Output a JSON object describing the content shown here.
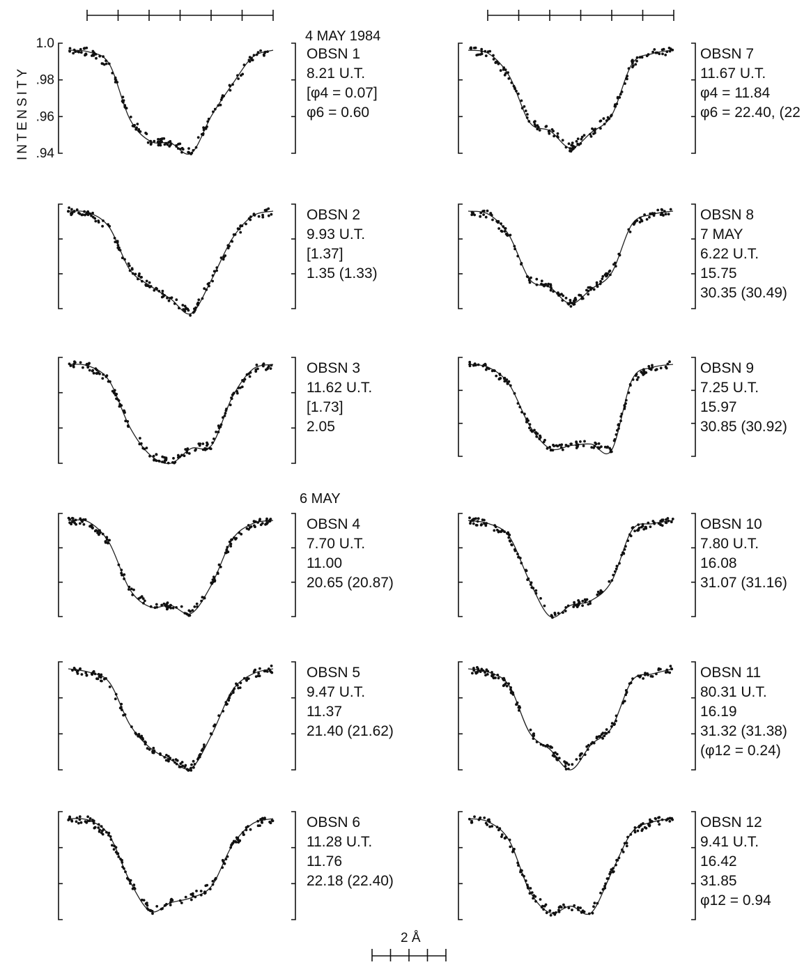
{
  "figure": {
    "ylabel": "INTENSITY",
    "scale_bar_label": "2 Å",
    "dates": [
      "4 MAY 1984",
      "6 MAY"
    ]
  },
  "chart_data": [
    {
      "type": "line",
      "obsn": "OBSN 1",
      "lines": [
        "OBSN 1",
        "8.21 U.T.",
        "[φ4 = 0.07]",
        "φ6 = 0.60"
      ],
      "ylim": [
        0.94,
        1.0
      ],
      "yticks": [
        ".94",
        ".96",
        ".98",
        "1.0"
      ],
      "x": [
        0,
        0.1,
        0.2,
        0.3,
        0.4,
        0.5,
        0.6,
        0.7,
        0.8,
        0.9,
        1.0
      ],
      "y": [
        1.0,
        0.999,
        0.992,
        0.96,
        0.947,
        0.946,
        0.94,
        0.962,
        0.98,
        0.996,
        1.0
      ]
    },
    {
      "type": "line",
      "obsn": "OBSN 2",
      "lines": [
        "OBSN 2",
        "9.93 U.T.",
        "[1.37]",
        "1.35 (1.33)"
      ],
      "ylim": [
        0.94,
        1.0
      ],
      "x": [
        0,
        0.1,
        0.2,
        0.3,
        0.4,
        0.5,
        0.6,
        0.7,
        0.8,
        0.9,
        1.0
      ],
      "y": [
        1.0,
        0.999,
        0.99,
        0.964,
        0.954,
        0.946,
        0.937,
        0.958,
        0.983,
        0.997,
        1.0
      ]
    },
    {
      "type": "line",
      "obsn": "OBSN 3",
      "lines": [
        "OBSN 3",
        "11.62 U.T.",
        "[1.73]",
        "2.05"
      ],
      "ylim": [
        0.94,
        1.0
      ],
      "x": [
        0,
        0.1,
        0.2,
        0.3,
        0.4,
        0.5,
        0.6,
        0.7,
        0.8,
        0.9,
        1.0
      ],
      "y": [
        1.0,
        0.999,
        0.99,
        0.962,
        0.945,
        0.94,
        0.949,
        0.951,
        0.98,
        0.997,
        1.0
      ]
    },
    {
      "type": "line",
      "obsn": "OBSN 4",
      "lines": [
        "OBSN 4",
        "7.70 U.T.",
        "11.00",
        "20.65 (20.87)"
      ],
      "ylim": [
        0.94,
        1.0
      ],
      "x": [
        0,
        0.1,
        0.2,
        0.3,
        0.4,
        0.5,
        0.6,
        0.7,
        0.8,
        0.9,
        1.0
      ],
      "y": [
        1.0,
        0.999,
        0.986,
        0.957,
        0.946,
        0.947,
        0.942,
        0.96,
        0.988,
        0.998,
        1.0
      ]
    },
    {
      "type": "line",
      "obsn": "OBSN 5",
      "lines": [
        "OBSN 5",
        "9.47 U.T.",
        "11.37",
        "21.40 (21.62)"
      ],
      "ylim": [
        0.94,
        1.0
      ],
      "x": [
        0,
        0.1,
        0.2,
        0.3,
        0.4,
        0.5,
        0.6,
        0.7,
        0.8,
        0.9,
        1.0
      ],
      "y": [
        1.0,
        0.998,
        0.992,
        0.967,
        0.953,
        0.946,
        0.941,
        0.961,
        0.987,
        0.997,
        1.0
      ]
    },
    {
      "type": "line",
      "obsn": "OBSN 6",
      "lines": [
        "OBSN 6",
        "11.28 U.T.",
        "11.76",
        "22.18 (22.40)"
      ],
      "ylim": [
        0.94,
        1.0
      ],
      "x": [
        0,
        0.1,
        0.2,
        0.3,
        0.4,
        0.5,
        0.6,
        0.7,
        0.8,
        0.9,
        1.0
      ],
      "y": [
        1.0,
        0.999,
        0.99,
        0.963,
        0.945,
        0.95,
        0.953,
        0.96,
        0.984,
        0.997,
        1.0
      ]
    },
    {
      "type": "line",
      "obsn": "OBSN 7",
      "lines": [
        "OBSN 7",
        "11.67 U.T.",
        "φ4 = 11.84",
        "φ6 = 22.40, (22"
      ],
      "ylim": [
        0.94,
        1.0
      ],
      "x": [
        0,
        0.1,
        0.2,
        0.3,
        0.4,
        0.5,
        0.6,
        0.7,
        0.8,
        0.9,
        1.0
      ],
      "y": [
        1.0,
        0.998,
        0.985,
        0.958,
        0.953,
        0.943,
        0.952,
        0.962,
        0.992,
        0.998,
        1.0
      ]
    },
    {
      "type": "line",
      "obsn": "OBSN 8",
      "lines": [
        "OBSN 8",
        "7 MAY",
        "6.22 U.T.",
        "15.75",
        "30.35 (30.49)"
      ],
      "ylim": [
        0.94,
        1.0
      ],
      "x": [
        0,
        0.1,
        0.2,
        0.3,
        0.4,
        0.5,
        0.6,
        0.7,
        0.8,
        0.9,
        1.0
      ],
      "y": [
        1.0,
        0.998,
        0.985,
        0.958,
        0.953,
        0.943,
        0.952,
        0.962,
        0.992,
        0.998,
        1.0
      ]
    },
    {
      "type": "line",
      "obsn": "OBSN 9",
      "lines": [
        "OBSN 9",
        "7.25 U.T.",
        "15.97",
        "30.85 (30.92)"
      ],
      "ylim": [
        0.94,
        1.0
      ],
      "x": [
        0,
        0.1,
        0.2,
        0.3,
        0.4,
        0.5,
        0.6,
        0.7,
        0.8,
        0.9,
        1.0
      ],
      "y": [
        1.0,
        0.998,
        0.987,
        0.96,
        0.945,
        0.947,
        0.948,
        0.944,
        0.99,
        0.998,
        1.0
      ]
    },
    {
      "type": "line",
      "obsn": "OBSN 10",
      "lines": [
        "OBSN 10",
        "7.80 U.T.",
        "16.08",
        "31.07 (31.16)"
      ],
      "ylim": [
        0.94,
        1.0
      ],
      "x": [
        0,
        0.1,
        0.2,
        0.3,
        0.4,
        0.5,
        0.6,
        0.7,
        0.8,
        0.9,
        1.0
      ],
      "y": [
        1.0,
        0.998,
        0.99,
        0.962,
        0.94,
        0.947,
        0.95,
        0.962,
        0.994,
        0.998,
        1.0
      ]
    },
    {
      "type": "line",
      "obsn": "OBSN 11",
      "lines": [
        "OBSN 11",
        "80.31 U.T.",
        "16.19",
        "31.32 (31.38)",
        "(φ12 = 0.24)"
      ],
      "ylim": [
        0.94,
        1.0
      ],
      "x": [
        0,
        0.1,
        0.2,
        0.3,
        0.4,
        0.5,
        0.6,
        0.7,
        0.8,
        0.9,
        1.0
      ],
      "y": [
        1.0,
        0.998,
        0.99,
        0.962,
        0.952,
        0.94,
        0.955,
        0.965,
        0.993,
        0.997,
        1.0
      ]
    },
    {
      "type": "line",
      "obsn": "OBSN 12",
      "lines": [
        "OBSN 12",
        "9.41 U.T.",
        "16.42",
        "31.85",
        "φ12 = 0.94"
      ],
      "ylim": [
        0.94,
        1.0
      ],
      "x": [
        0,
        0.1,
        0.2,
        0.3,
        0.4,
        0.5,
        0.6,
        0.7,
        0.8,
        0.9,
        1.0
      ],
      "y": [
        1.0,
        0.998,
        0.987,
        0.957,
        0.944,
        0.948,
        0.944,
        0.968,
        0.992,
        0.998,
        1.0
      ]
    }
  ]
}
